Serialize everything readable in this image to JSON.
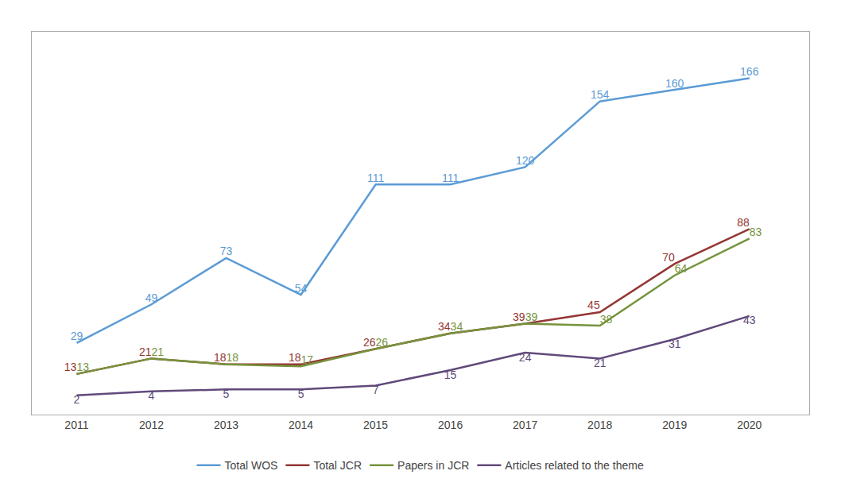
{
  "chart_data": {
    "type": "line",
    "x": [
      2011,
      2012,
      2013,
      2014,
      2015,
      2016,
      2017,
      2018,
      2019,
      2020
    ],
    "series": [
      {
        "name": "Total WOS",
        "color": "#5b9bd5",
        "values": [
          29,
          49,
          73,
          54,
          111,
          111,
          120,
          154,
          160,
          166
        ]
      },
      {
        "name": "Total JCR",
        "color": "#943634",
        "values": [
          13,
          21,
          18,
          18,
          26,
          34,
          39,
          45,
          70,
          88
        ]
      },
      {
        "name": "Papers in JCR",
        "color": "#76933c",
        "values": [
          13,
          21,
          18,
          17,
          26,
          34,
          39,
          38,
          64,
          83
        ]
      },
      {
        "name": "Articles related to the theme",
        "color": "#604a7b",
        "values": [
          2,
          4,
          5,
          5,
          7,
          15,
          24,
          21,
          31,
          43
        ]
      }
    ],
    "xlim": [
      2010.4,
      2020.8
    ],
    "xticks": [
      2011,
      2012,
      2013,
      2014,
      2015,
      2016,
      2017,
      2018,
      2019,
      2020
    ],
    "ylim": [
      -8,
      190
    ],
    "tick_labels": "x",
    "grid": false,
    "legend": "bottom",
    "data_labels": true
  }
}
